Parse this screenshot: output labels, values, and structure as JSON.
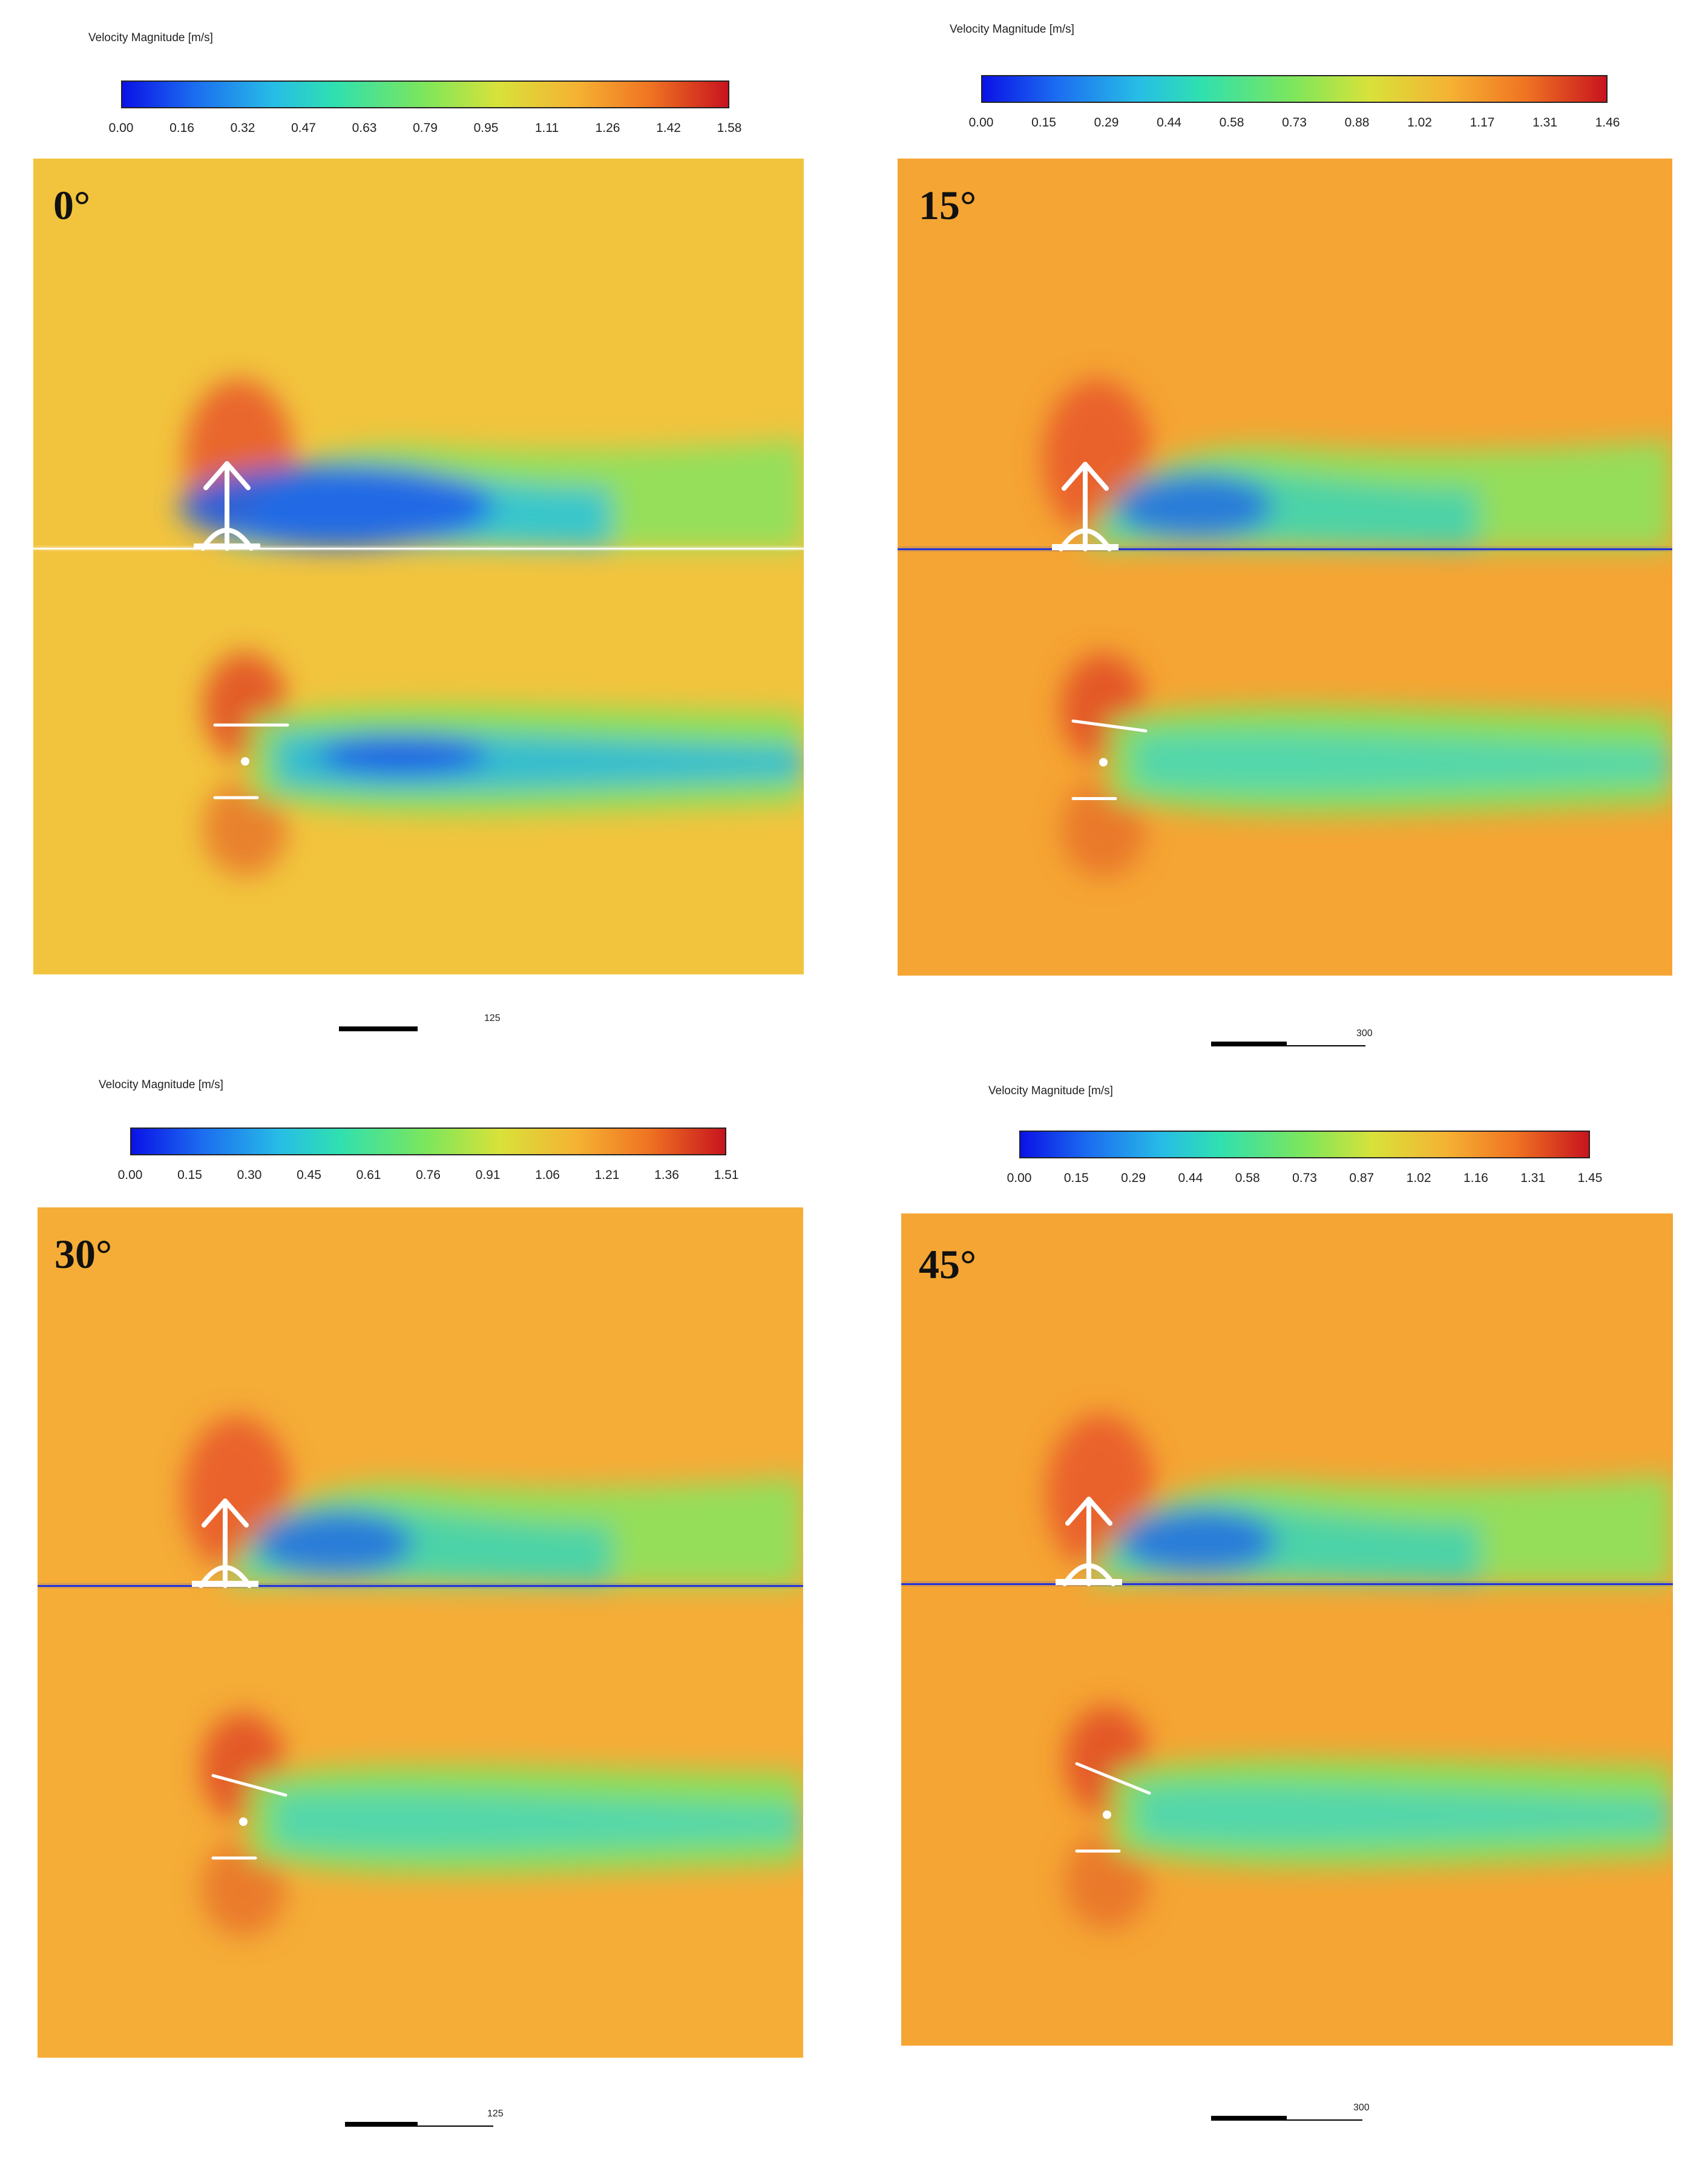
{
  "colorbar_title": "Velocity Magnitude [m/s]",
  "colormap": [
    "#0a12e6",
    "#1c6df0",
    "#27bde6",
    "#2fe0b0",
    "#7ee65a",
    "#d8e23a",
    "#f5b233",
    "#f07422",
    "#c8141e"
  ],
  "background_colors": {
    "0deg": "#f2c43e",
    "15deg": "#f5a534",
    "30deg": "#f5ad38",
    "45deg": "#f5a534"
  },
  "panels": [
    {
      "angle": "0°",
      "ticks": [
        "0.00",
        "0.16",
        "0.32",
        "0.47",
        "0.63",
        "0.79",
        "0.95",
        "1.11",
        "1.26",
        "1.42",
        "1.58"
      ],
      "scale_label": "125"
    },
    {
      "angle": "15°",
      "ticks": [
        "0.00",
        "0.15",
        "0.29",
        "0.44",
        "0.58",
        "0.73",
        "0.88",
        "1.02",
        "1.17",
        "1.31",
        "1.46"
      ],
      "scale_label": "300"
    },
    {
      "angle": "30°",
      "ticks": [
        "0.00",
        "0.15",
        "0.30",
        "0.45",
        "0.61",
        "0.76",
        "0.91",
        "1.06",
        "1.21",
        "1.36",
        "1.51"
      ],
      "scale_label": "125"
    },
    {
      "angle": "45°",
      "ticks": [
        "0.00",
        "0.15",
        "0.29",
        "0.44",
        "0.58",
        "0.73",
        "0.87",
        "1.02",
        "1.16",
        "1.31",
        "1.45"
      ],
      "scale_label": "300"
    }
  ]
}
